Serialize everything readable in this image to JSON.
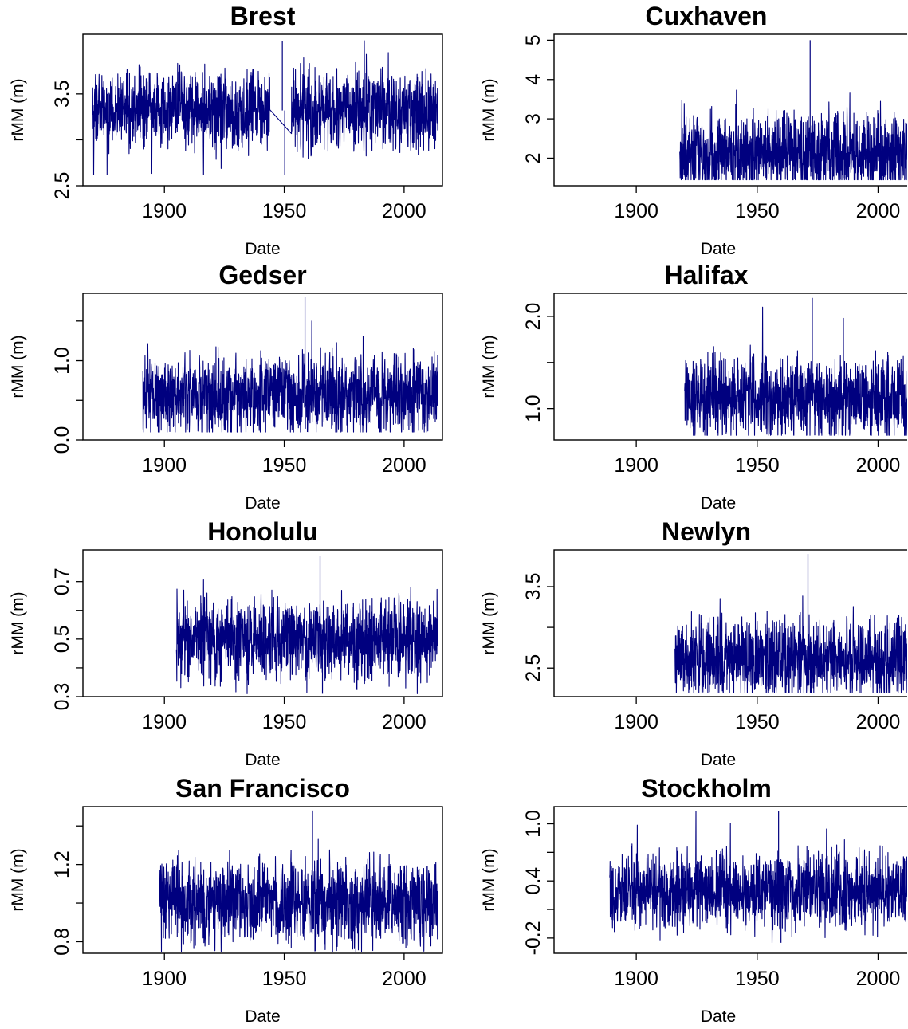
{
  "figure": {
    "xlabel": "Date",
    "ylabel": "rMM (m)",
    "series_color": "#00007F",
    "xlim": [
      1866,
      2016
    ],
    "xticks": [
      "1900",
      "1950",
      "2000"
    ]
  },
  "chart_data": [
    {
      "type": "line",
      "title": "Brest",
      "xlabel": "Date",
      "ylabel": "rMM (m)",
      "xlim": [
        1866,
        2016
      ],
      "ylim": [
        2.5,
        4.15
      ],
      "yticks": [
        2.5,
        3.0,
        3.5
      ],
      "ytick_labels": [
        "2.5",
        "",
        "3.5"
      ],
      "x_start": 1870,
      "x_end": 2014,
      "gaps": [
        [
          1944,
          1953
        ]
      ],
      "y_mean": 3.32,
      "y_min": 2.62,
      "y_max": 4.08,
      "series": [
        {
          "x_range": [
            1870,
            2014
          ],
          "y_range": [
            2.62,
            4.08
          ],
          "mean": 3.32
        }
      ],
      "grid": false,
      "legend": "none"
    },
    {
      "type": "line",
      "title": "Cuxhaven",
      "xlabel": "Date",
      "ylabel": "rMM (m)",
      "xlim": [
        1866,
        2016
      ],
      "ylim": [
        1.3,
        5.15
      ],
      "yticks": [
        2,
        3,
        4,
        5
      ],
      "ytick_labels": [
        "2",
        "3",
        "4",
        "5"
      ],
      "x_start": 1918,
      "x_end": 2016,
      "gaps": [],
      "y_mean": 2.1,
      "y_min": 1.45,
      "y_max": 5.0,
      "series": [
        {
          "x_range": [
            1918,
            2016
          ],
          "y_range": [
            1.45,
            5.0
          ],
          "mean": 2.1
        }
      ],
      "grid": false,
      "legend": "none"
    },
    {
      "type": "line",
      "title": "Gedser",
      "xlabel": "Date",
      "ylabel": "rMM (m)",
      "xlim": [
        1866,
        2016
      ],
      "ylim": [
        0.0,
        1.85
      ],
      "yticks": [
        0.0,
        0.5,
        1.0,
        1.5
      ],
      "ytick_labels": [
        "0.0",
        "",
        "1.0",
        ""
      ],
      "x_start": 1891,
      "x_end": 2014,
      "gaps": [],
      "y_mean": 0.57,
      "y_min": 0.1,
      "y_max": 1.8,
      "series": [
        {
          "x_range": [
            1891,
            2014
          ],
          "y_range": [
            0.1,
            1.8
          ],
          "mean": 0.57
        }
      ],
      "grid": false,
      "legend": "none"
    },
    {
      "type": "line",
      "title": "Halifax",
      "xlabel": "Date",
      "ylabel": "rMM (m)",
      "xlim": [
        1866,
        2016
      ],
      "ylim": [
        0.66,
        2.25
      ],
      "yticks": [
        1.0,
        1.5,
        2.0
      ],
      "ytick_labels": [
        "1.0",
        "",
        "2.0"
      ],
      "x_start": 1920,
      "x_end": 2016,
      "gaps": [],
      "y_mean": 1.12,
      "y_min": 0.71,
      "y_max": 2.2,
      "series": [
        {
          "x_range": [
            1920,
            2016
          ],
          "y_range": [
            0.71,
            2.2
          ],
          "mean": 1.12
        }
      ],
      "grid": false,
      "legend": "none"
    },
    {
      "type": "line",
      "title": "Honolulu",
      "xlabel": "Date",
      "ylabel": "rMM (m)",
      "xlim": [
        1866,
        2016
      ],
      "ylim": [
        0.3,
        0.81
      ],
      "yticks": [
        0.3,
        0.4,
        0.5,
        0.6,
        0.7
      ],
      "ytick_labels": [
        "0.3",
        "",
        "0.5",
        "",
        "0.7"
      ],
      "x_start": 1905,
      "x_end": 2014,
      "gaps": [],
      "y_mean": 0.5,
      "y_min": 0.31,
      "y_max": 0.79,
      "series": [
        {
          "x_range": [
            1905,
            2014
          ],
          "y_range": [
            0.31,
            0.79
          ],
          "mean": 0.5
        }
      ],
      "grid": false,
      "legend": "none"
    },
    {
      "type": "line",
      "title": "Newlyn",
      "xlabel": "Date",
      "ylabel": "rMM (m)",
      "xlim": [
        1866,
        2016
      ],
      "ylim": [
        2.15,
        3.95
      ],
      "yticks": [
        2.5,
        3.0,
        3.5
      ],
      "ytick_labels": [
        "2.5",
        "",
        "3.5"
      ],
      "x_start": 1916,
      "x_end": 2016,
      "gaps": [],
      "y_mean": 2.6,
      "y_min": 2.2,
      "y_max": 3.9,
      "series": [
        {
          "x_range": [
            1916,
            2016
          ],
          "y_range": [
            2.2,
            3.9
          ],
          "mean": 2.6
        }
      ],
      "grid": false,
      "legend": "none"
    },
    {
      "type": "line",
      "title": "San Francisco",
      "xlabel": "Date",
      "ylabel": "rMM (m)",
      "xlim": [
        1866,
        2016
      ],
      "ylim": [
        0.74,
        1.5
      ],
      "yticks": [
        0.8,
        1.0,
        1.2,
        1.4
      ],
      "ytick_labels": [
        "0.8",
        "",
        "1.2",
        ""
      ],
      "x_start": 1898,
      "x_end": 2014,
      "gaps": [],
      "y_mean": 1.0,
      "y_min": 0.75,
      "y_max": 1.48,
      "series": [
        {
          "x_range": [
            1898,
            2014
          ],
          "y_range": [
            0.75,
            1.48
          ],
          "mean": 1.0
        }
      ],
      "grid": false,
      "legend": "none"
    },
    {
      "type": "line",
      "title": "Stockholm",
      "xlabel": "Date",
      "ylabel": "rMM (m)",
      "xlim": [
        1866,
        2016
      ],
      "ylim": [
        -0.36,
        1.18
      ],
      "yticks": [
        -0.2,
        0.1,
        0.4,
        0.7,
        1.0
      ],
      "ytick_labels": [
        "-0.2",
        "",
        "0.4",
        "",
        "1.0"
      ],
      "x_start": 1889,
      "x_end": 2016,
      "gaps": [],
      "y_mean": 0.3,
      "y_min": -0.25,
      "y_max": 1.13,
      "series": [
        {
          "x_range": [
            1889,
            2016
          ],
          "y_range": [
            -0.25,
            1.13
          ],
          "mean": 0.3
        }
      ],
      "grid": false,
      "legend": "none"
    }
  ]
}
